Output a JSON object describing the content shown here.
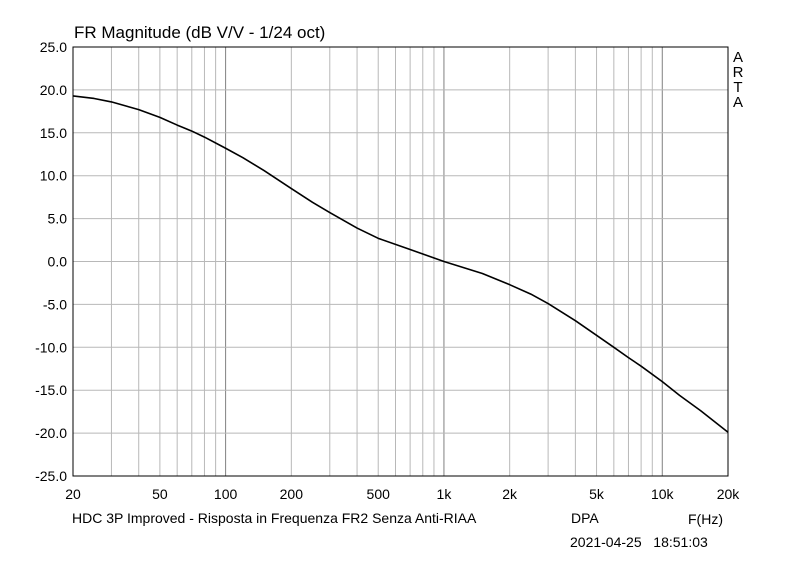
{
  "chart_data": {
    "type": "line",
    "title": "FR Magnitude (dB V/V - 1/24 oct)",
    "xlabel": "F(Hz)",
    "ylabel": "",
    "xscale": "log",
    "xlim": [
      20,
      20000
    ],
    "ylim": [
      -25,
      25
    ],
    "grid": true,
    "x_ticks": [
      20,
      50,
      100,
      200,
      500,
      1000,
      2000,
      5000,
      10000,
      20000
    ],
    "x_tick_labels": [
      "20",
      "50",
      "100",
      "200",
      "500",
      "1k",
      "2k",
      "5k",
      "10k",
      "20k"
    ],
    "y_ticks": [
      25,
      20,
      15,
      10,
      5,
      0,
      -5,
      -10,
      -15,
      -20,
      -25
    ],
    "y_tick_labels": [
      "25.0",
      "20.0",
      "15.0",
      "10.0",
      "5.0",
      "0.0",
      "-5.0",
      "-10.0",
      "-15.0",
      "-20.0",
      "-25.0"
    ],
    "series": [
      {
        "color": "#000000",
        "x": [
          20,
          25,
          30,
          40,
          50,
          60,
          70,
          80,
          100,
          120,
          150,
          200,
          250,
          300,
          400,
          500,
          700,
          1000,
          1500,
          2000,
          2500,
          3000,
          4000,
          5000,
          6000,
          7000,
          8000,
          10000,
          12000,
          15000,
          20000
        ],
        "y": [
          19.3,
          19.0,
          18.6,
          17.7,
          16.8,
          15.9,
          15.2,
          14.5,
          13.2,
          12.1,
          10.6,
          8.5,
          6.9,
          5.7,
          3.9,
          2.7,
          1.4,
          0.0,
          -1.4,
          -2.7,
          -3.8,
          -4.9,
          -6.9,
          -8.6,
          -10.0,
          -11.2,
          -12.2,
          -14.0,
          -15.6,
          -17.4,
          -19.9
        ]
      }
    ]
  },
  "brand": [
    "A",
    "R",
    "T",
    "A"
  ],
  "footer": {
    "description": "HDC 3P Improved - Risposta in Frequenza FR2 Senza Anti-RIAA",
    "author": "DPA",
    "axis_unit": "F(Hz)",
    "timestamp": "2021-04-25   18:51:03"
  }
}
